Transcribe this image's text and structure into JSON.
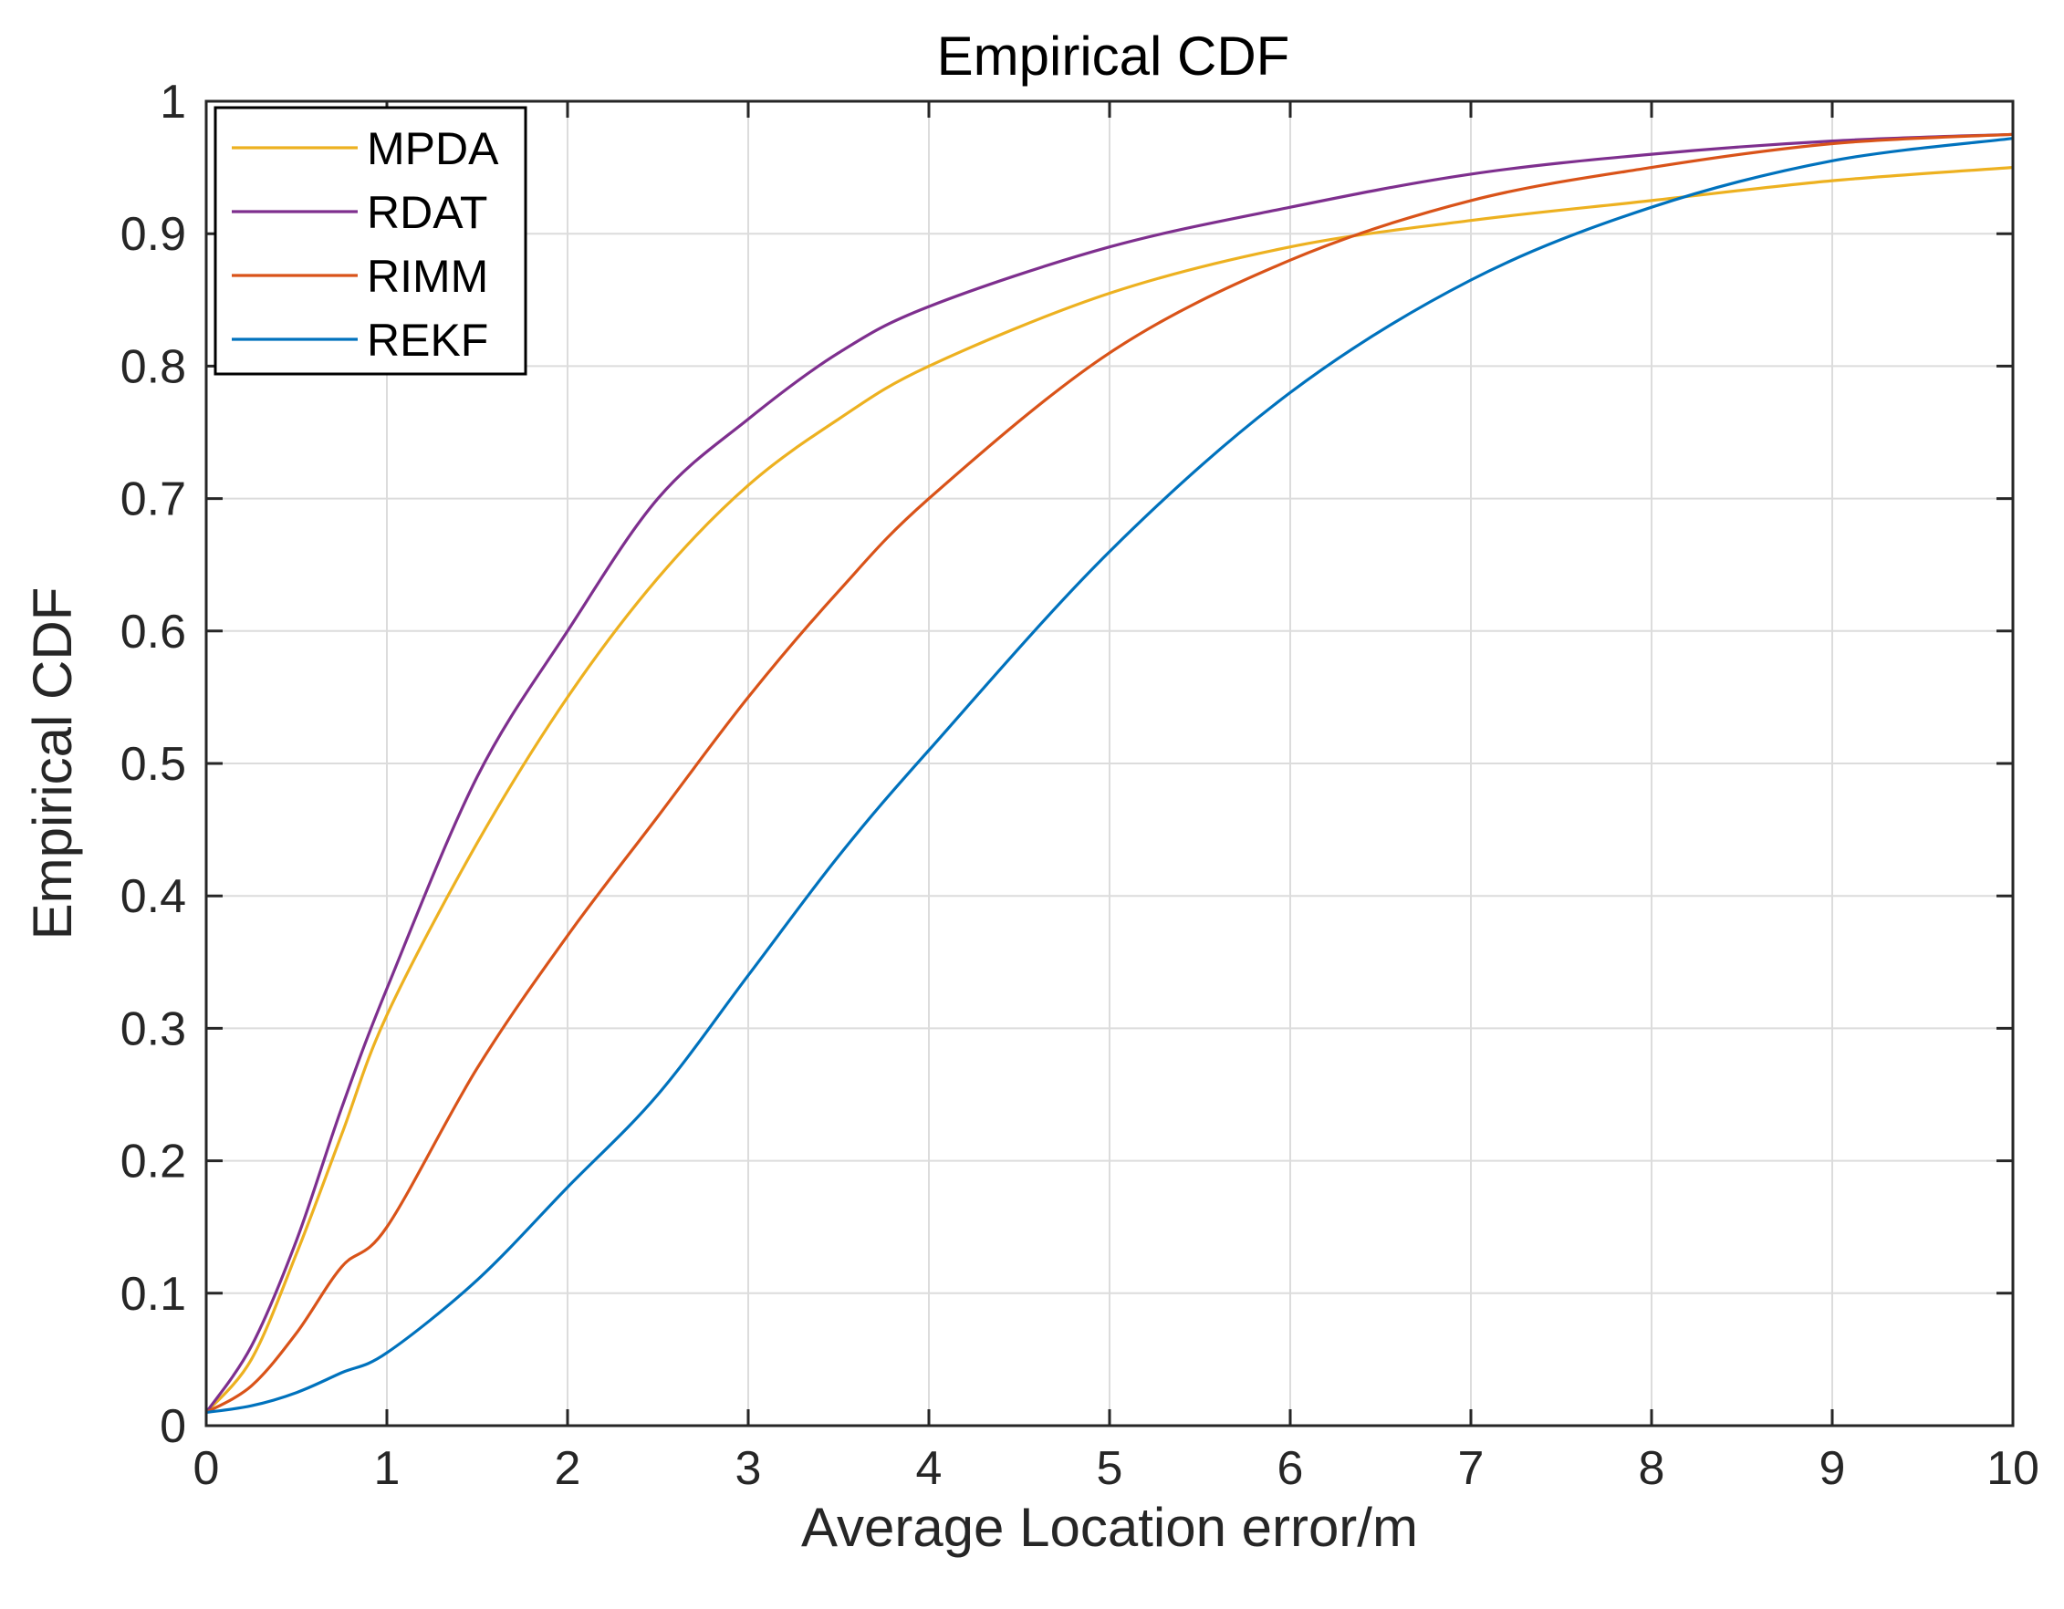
{
  "chart_data": {
    "type": "line",
    "title": "Empirical CDF",
    "xlabel": "Average Location error/m",
    "ylabel": "Empirical CDF",
    "xlim": [
      0,
      10
    ],
    "ylim": [
      0,
      1
    ],
    "grid": true,
    "legend_position": "top-left",
    "xticks": [
      "0",
      "1",
      "2",
      "3",
      "4",
      "5",
      "6",
      "7",
      "8",
      "9",
      "10"
    ],
    "yticks": [
      "0",
      "0.1",
      "0.2",
      "0.3",
      "0.4",
      "0.5",
      "0.6",
      "0.7",
      "0.8",
      "0.9",
      "1"
    ],
    "x": [
      0,
      0.25,
      0.5,
      0.75,
      1,
      1.5,
      2,
      2.5,
      3,
      3.5,
      4,
      5,
      6,
      7,
      8,
      9,
      10
    ],
    "series": [
      {
        "name": "MPDA",
        "color": "#EDB120",
        "values": [
          0.01,
          0.05,
          0.13,
          0.22,
          0.31,
          0.44,
          0.55,
          0.64,
          0.71,
          0.76,
          0.8,
          0.855,
          0.89,
          0.91,
          0.925,
          0.94,
          0.95
        ]
      },
      {
        "name": "RDAT",
        "color": "#7E2F8E",
        "values": [
          0.01,
          0.06,
          0.14,
          0.24,
          0.33,
          0.49,
          0.6,
          0.7,
          0.76,
          0.81,
          0.845,
          0.89,
          0.92,
          0.945,
          0.96,
          0.97,
          0.975
        ]
      },
      {
        "name": "RIMM",
        "color": "#D95319",
        "values": [
          0.01,
          0.03,
          0.07,
          0.12,
          0.15,
          0.27,
          0.37,
          0.46,
          0.55,
          0.63,
          0.7,
          0.81,
          0.88,
          0.925,
          0.95,
          0.968,
          0.975
        ]
      },
      {
        "name": "REKF",
        "color": "#0072BD",
        "values": [
          0.01,
          0.015,
          0.025,
          0.04,
          0.055,
          0.11,
          0.18,
          0.25,
          0.34,
          0.43,
          0.51,
          0.66,
          0.78,
          0.865,
          0.92,
          0.955,
          0.972
        ]
      }
    ]
  }
}
